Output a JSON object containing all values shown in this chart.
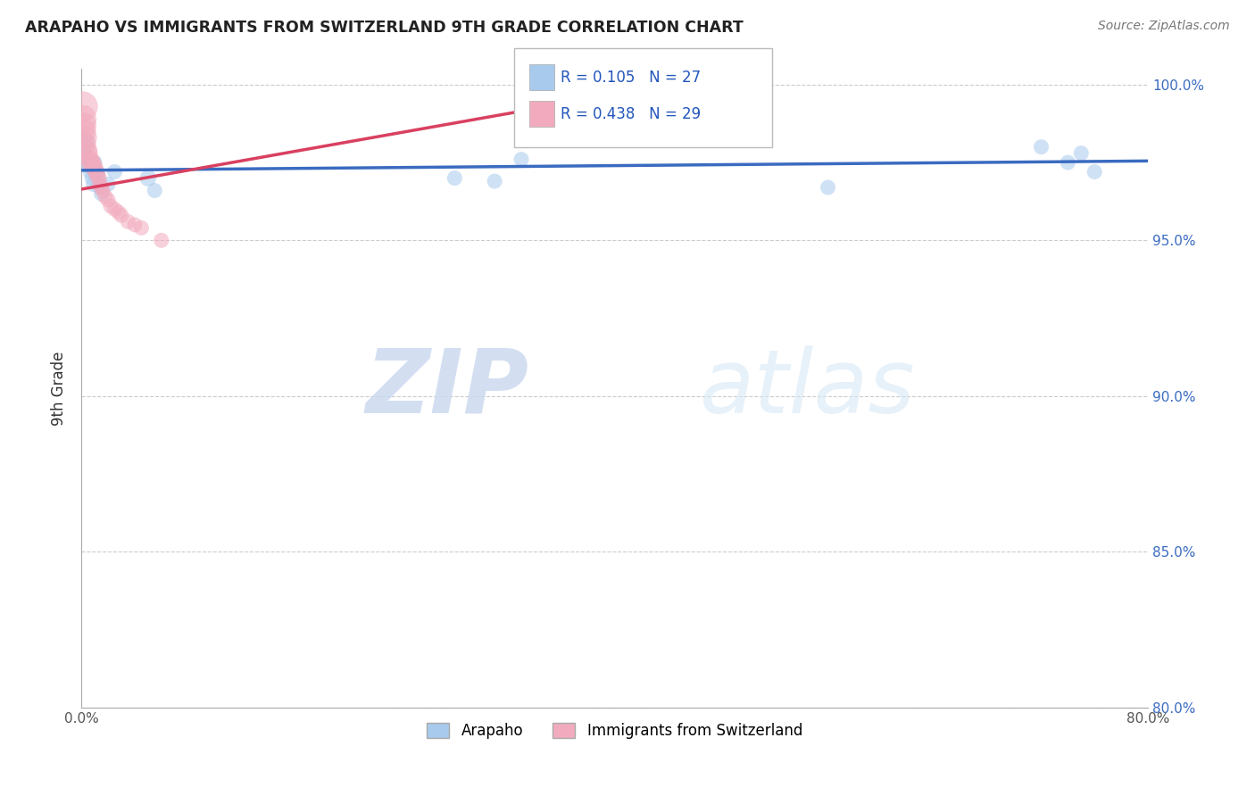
{
  "title": "ARAPAHO VS IMMIGRANTS FROM SWITZERLAND 9TH GRADE CORRELATION CHART",
  "source": "Source: ZipAtlas.com",
  "ylabel": "9th Grade",
  "xlim": [
    0.0,
    0.8
  ],
  "ylim": [
    0.8,
    1.005
  ],
  "legend_blue_r": "R = 0.105",
  "legend_blue_n": "N = 27",
  "legend_pink_r": "R = 0.438",
  "legend_pink_n": "N = 29",
  "blue_color": "#A8CAEC",
  "pink_color": "#F2ABBE",
  "blue_line_color": "#3A6BC0",
  "pink_line_color": "#D94060",
  "watermark_zip": "ZIP",
  "watermark_atlas": "atlas",
  "arapaho_x": [
    0.001,
    0.002,
    0.003,
    0.004,
    0.005,
    0.006,
    0.007,
    0.008,
    0.009,
    0.01,
    0.011,
    0.012,
    0.013,
    0.014,
    0.015,
    0.02,
    0.025,
    0.05,
    0.055,
    0.28,
    0.31,
    0.33,
    0.56,
    0.72,
    0.74,
    0.75,
    0.76
  ],
  "arapaho_y": [
    0.98,
    0.978,
    0.982,
    0.975,
    0.976,
    0.974,
    0.972,
    0.97,
    0.968,
    0.975,
    0.972,
    0.971,
    0.969,
    0.967,
    0.965,
    0.968,
    0.972,
    0.97,
    0.966,
    0.97,
    0.969,
    0.976,
    0.967,
    0.98,
    0.975,
    0.978,
    0.972
  ],
  "arapaho_sizes": [
    220,
    200,
    200,
    180,
    180,
    160,
    160,
    150,
    150,
    150,
    150,
    150,
    150,
    150,
    150,
    150,
    150,
    180,
    150,
    150,
    150,
    150,
    150,
    150,
    150,
    150,
    150
  ],
  "swiss_x": [
    0.001,
    0.001,
    0.002,
    0.002,
    0.003,
    0.003,
    0.004,
    0.005,
    0.006,
    0.007,
    0.008,
    0.009,
    0.01,
    0.011,
    0.012,
    0.013,
    0.014,
    0.015,
    0.016,
    0.018,
    0.02,
    0.022,
    0.025,
    0.028,
    0.03,
    0.035,
    0.04,
    0.045,
    0.06
  ],
  "swiss_y": [
    0.993,
    0.989,
    0.987,
    0.985,
    0.983,
    0.981,
    0.979,
    0.978,
    0.976,
    0.975,
    0.975,
    0.974,
    0.973,
    0.972,
    0.971,
    0.97,
    0.968,
    0.967,
    0.966,
    0.964,
    0.963,
    0.961,
    0.96,
    0.959,
    0.958,
    0.956,
    0.955,
    0.954,
    0.95
  ],
  "swiss_sizes": [
    600,
    500,
    400,
    380,
    350,
    300,
    280,
    260,
    240,
    230,
    220,
    210,
    200,
    190,
    180,
    170,
    165,
    160,
    155,
    150,
    150,
    150,
    150,
    150,
    150,
    150,
    150,
    150,
    150
  ],
  "blue_trendline_x": [
    0.0,
    0.8
  ],
  "blue_trendline_y": [
    0.9725,
    0.9755
  ],
  "pink_trendline_x": [
    0.001,
    0.35
  ],
  "pink_trendline_y": [
    0.9665,
    0.993
  ]
}
